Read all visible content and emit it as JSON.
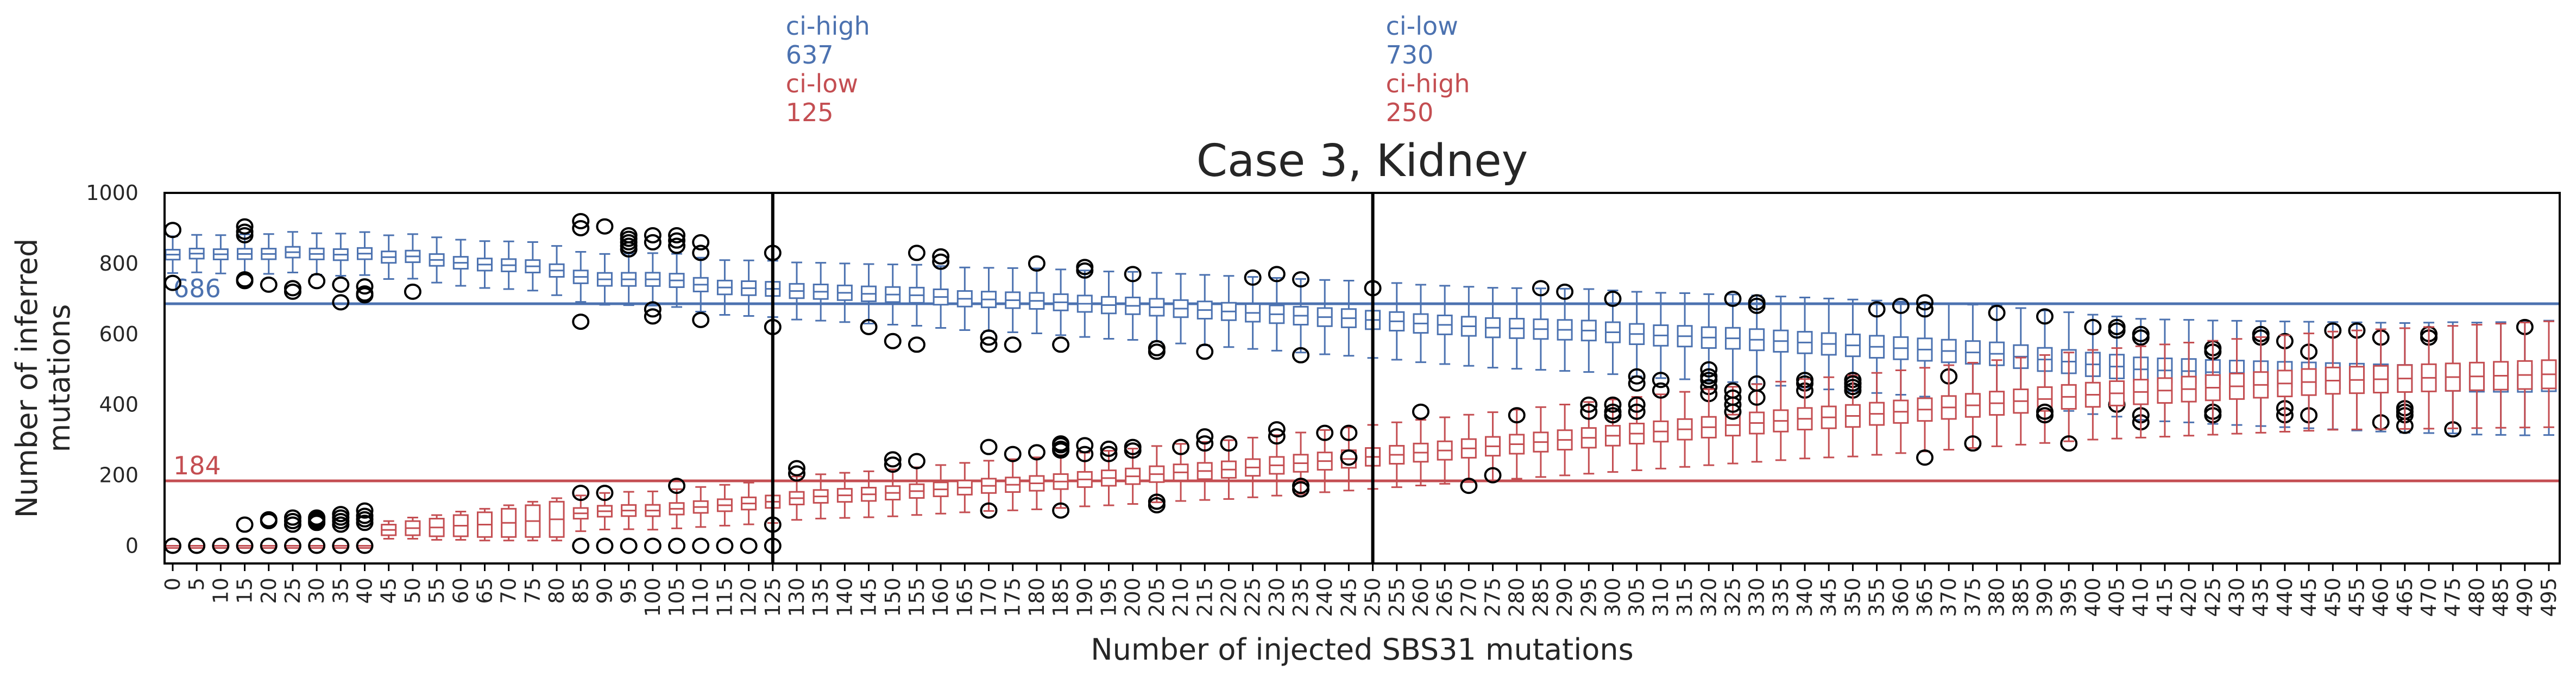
{
  "chart_data": {
    "type": "box",
    "title": "Case 3, Kidney",
    "xlabel": "Number of injected SBS31 mutations",
    "ylabel": "Number of inferred\nmutations",
    "ylim": [
      -50,
      1000
    ],
    "yticks": [
      0,
      200,
      400,
      600,
      800,
      1000
    ],
    "grid": false,
    "colors": {
      "ci_high_series": "#4c72b0",
      "ci_low_series": "#c44e52",
      "axis": "#000000",
      "outlier": "#000000"
    },
    "categories": [
      0,
      5,
      10,
      15,
      20,
      25,
      30,
      35,
      40,
      45,
      50,
      55,
      60,
      65,
      70,
      75,
      80,
      85,
      90,
      95,
      100,
      105,
      110,
      115,
      120,
      125,
      130,
      135,
      140,
      145,
      150,
      155,
      160,
      165,
      170,
      175,
      180,
      185,
      190,
      195,
      200,
      205,
      210,
      215,
      220,
      225,
      230,
      235,
      240,
      245,
      250,
      255,
      260,
      265,
      270,
      275,
      280,
      285,
      290,
      295,
      300,
      305,
      310,
      315,
      320,
      325,
      330,
      335,
      340,
      345,
      350,
      355,
      360,
      365,
      370,
      375,
      380,
      385,
      390,
      395,
      400,
      405,
      410,
      415,
      420,
      425,
      430,
      435,
      440,
      445,
      450,
      455,
      460,
      465,
      470,
      475,
      480,
      485,
      490,
      495
    ],
    "reference_lines": [
      {
        "value": 686,
        "label": "686",
        "color": "#4c72b0"
      },
      {
        "value": 184,
        "label": "184",
        "color": "#c44e52"
      }
    ],
    "vertical_lines": [
      {
        "x": 125,
        "top_labels": [
          {
            "text": "ci-high",
            "color": "#4c72b0"
          },
          {
            "text": "637",
            "color": "#4c72b0"
          },
          {
            "text": "ci-low",
            "color": "#c44e52"
          },
          {
            "text": "125",
            "color": "#c44e52"
          }
        ]
      },
      {
        "x": 250,
        "top_labels": [
          {
            "text": "ci-low",
            "color": "#4c72b0"
          },
          {
            "text": "730",
            "color": "#4c72b0"
          },
          {
            "text": "ci-high",
            "color": "#c44e52"
          },
          {
            "text": "250",
            "color": "#c44e52"
          }
        ]
      }
    ],
    "series": [
      {
        "color": "#4c72b0",
        "medians": [
          825,
          828,
          826,
          827,
          827,
          832,
          827,
          825,
          828,
          818,
          820,
          810,
          802,
          797,
          795,
          792,
          780,
          762,
          755,
          755,
          755,
          752,
          740,
          732,
          730,
          728,
          722,
          720,
          717,
          714,
          712,
          710,
          705,
          700,
          698,
          696,
          694,
          690,
          686,
          682,
          680,
          676,
          672,
          668,
          664,
          660,
          656,
          652,
          648,
          645,
          640,
          636,
          630,
          626,
          622,
          618,
          616,
          614,
          612,
          610,
          605,
          600,
          596,
          594,
          590,
          588,
          584,
          580,
          576,
          572,
          568,
          564,
          560,
          556,
          552,
          548,
          544,
          536,
          528,
          522,
          514,
          508,
          500,
          497,
          495,
          492,
          490,
          488,
          486,
          484,
          482,
          480,
          478,
          476,
          476,
          476,
          474,
          474,
          474,
          476
        ],
        "outliers": [
          [
            895,
            745
          ],
          [],
          [],
          [
            905,
            890,
            880,
            755,
            750
          ],
          [
            740
          ],
          [
            730,
            720
          ],
          [
            750
          ],
          [
            690,
            740
          ],
          [
            735,
            715,
            710
          ],
          [],
          [
            720
          ],
          [],
          [],
          [],
          [],
          [],
          [],
          [
            920,
            900,
            635
          ],
          [
            905
          ],
          [
            880,
            870,
            860,
            850,
            840
          ],
          [
            880,
            860,
            650,
            670
          ],
          [
            880,
            865,
            850
          ],
          [
            860,
            830,
            640
          ],
          [],
          [],
          [
            830,
            620
          ],
          [],
          [],
          [],
          [
            620
          ],
          [
            580
          ],
          [
            830,
            570
          ],
          [
            820,
            805
          ],
          [],
          [
            590,
            570
          ],
          [
            570
          ],
          [
            800
          ],
          [
            570
          ],
          [
            780,
            790
          ],
          [],
          [
            770
          ],
          [
            550,
            560
          ],
          [],
          [
            550
          ],
          [],
          [
            760
          ],
          [
            770
          ],
          [
            755,
            540
          ],
          [],
          [],
          [
            730
          ],
          [],
          [],
          [],
          [],
          [],
          [],
          [
            730
          ],
          [
            720
          ],
          [],
          [
            700
          ],
          [
            460,
            480
          ],
          [],
          [],
          [
            430,
            450,
            470,
            480,
            500
          ],
          [
            700
          ],
          [
            680,
            690,
            460
          ],
          [],
          [
            460,
            440,
            470
          ],
          [],
          [
            440,
            460,
            470
          ],
          [
            670
          ],
          [
            680
          ],
          [
            670,
            690
          ],
          [
            480
          ],
          [],
          [
            660
          ],
          [],
          [
            650
          ],
          [],
          [
            620
          ],
          [
            620,
            610,
            400
          ],
          [
            600,
            590,
            370,
            350
          ],
          [],
          [],
          [
            550,
            560,
            370,
            380
          ],
          [],
          [
            590,
            600
          ],
          [
            580,
            390,
            370
          ],
          [
            550,
            370
          ],
          [
            610
          ],
          [
            610
          ],
          [
            590,
            350
          ],
          [
            390,
            380,
            370,
            340
          ],
          [
            590,
            600
          ],
          [
            330
          ],
          [],
          [],
          [
            620
          ],
          []
        ]
      },
      {
        "color": "#c44e52",
        "medians": [
          0,
          0,
          0,
          0,
          0,
          0,
          0,
          0,
          0,
          45,
          50,
          52,
          57,
          60,
          65,
          70,
          75,
          92,
          98,
          100,
          100,
          105,
          110,
          115,
          120,
          125,
          135,
          140,
          143,
          146,
          150,
          155,
          160,
          165,
          170,
          173,
          177,
          182,
          188,
          192,
          197,
          203,
          208,
          212,
          216,
          222,
          228,
          234,
          240,
          246,
          252,
          258,
          264,
          270,
          276,
          282,
          288,
          294,
          300,
          306,
          312,
          318,
          324,
          330,
          336,
          342,
          348,
          354,
          360,
          364,
          368,
          374,
          380,
          386,
          392,
          398,
          404,
          410,
          416,
          422,
          428,
          432,
          436,
          440,
          444,
          448,
          452,
          456,
          460,
          464,
          468,
          470,
          472,
          474,
          476,
          478,
          480,
          482,
          484,
          486
        ],
        "outliers": [
          [
            0
          ],
          [
            0
          ],
          [
            0
          ],
          [
            0,
            60
          ],
          [
            0,
            70,
            75
          ],
          [
            0,
            80,
            70,
            60
          ],
          [
            0,
            70,
            65,
            75,
            80
          ],
          [
            0,
            90,
            80,
            70,
            60
          ],
          [
            0,
            85,
            75,
            65,
            100
          ],
          [],
          [],
          [],
          [],
          [],
          [],
          [],
          [],
          [
            150,
            0
          ],
          [
            0,
            150
          ],
          [
            0
          ],
          [
            0
          ],
          [
            170,
            0
          ],
          [
            0
          ],
          [
            0
          ],
          [
            0
          ],
          [
            60,
            0
          ],
          [
            220,
            205
          ],
          [],
          [],
          [],
          [
            245,
            230
          ],
          [
            240
          ],
          [],
          [],
          [
            100,
            280
          ],
          [
            260
          ],
          [
            265
          ],
          [
            100,
            270,
            285,
            290,
            275
          ],
          [
            285,
            260
          ],
          [
            260,
            275
          ],
          [
            280,
            270
          ],
          [
            115,
            125
          ],
          [
            280
          ],
          [
            310,
            290
          ],
          [
            290
          ],
          [],
          [
            330,
            310
          ],
          [
            170,
            160
          ],
          [
            320
          ],
          [
            320,
            250
          ],
          [],
          [],
          [
            380
          ],
          [],
          [
            170
          ],
          [
            200
          ],
          [
            370
          ],
          [],
          [],
          [
            400,
            380
          ],
          [
            400,
            380,
            370
          ],
          [
            400,
            380
          ],
          [
            440,
            470
          ],
          [],
          [],
          [
            380,
            400,
            420,
            440
          ],
          [
            420
          ],
          [],
          [],
          [],
          [
            450,
            460
          ],
          [],
          [],
          [
            250
          ],
          [],
          [
            290
          ],
          [],
          [],
          [
            370,
            380
          ],
          [
            290
          ],
          [],
          [],
          [],
          [],
          [],
          [],
          [],
          [],
          [],
          [],
          [],
          [],
          [],
          [],
          [],
          [],
          [],
          [],
          [],
          []
        ]
      }
    ]
  }
}
